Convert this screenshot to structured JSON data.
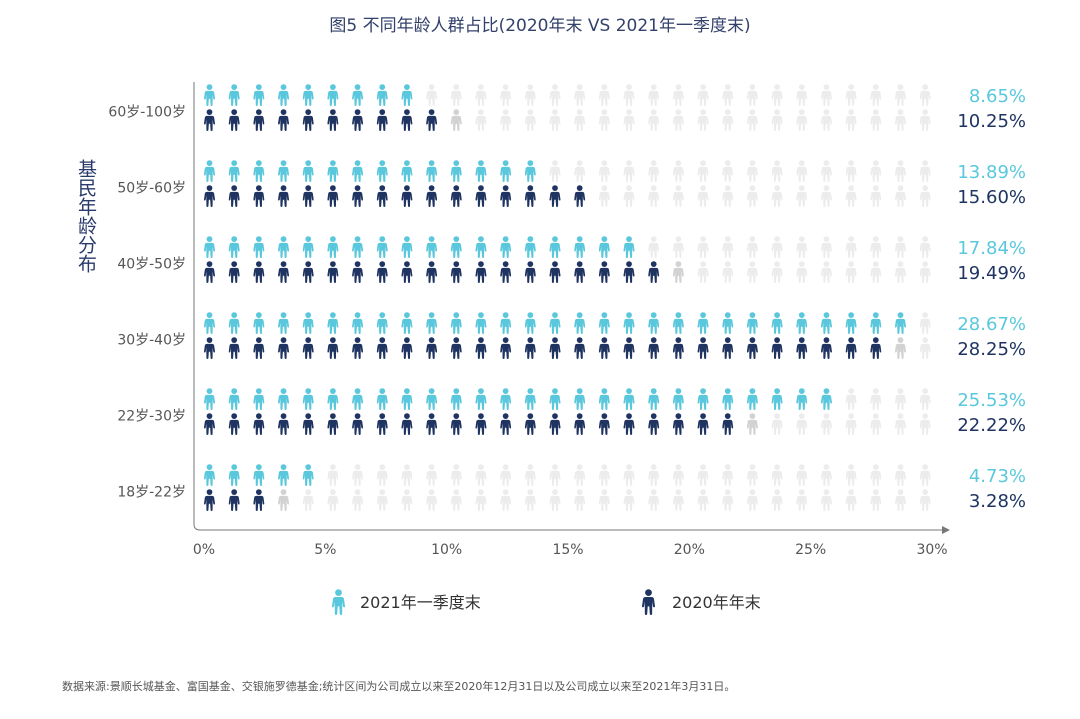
{
  "chart_data": {
    "type": "bar",
    "title": "图5   不同年龄人群占比(2020年末 VS 2021年一季度末)",
    "ylabel": "基民年龄分布",
    "xlabel": "",
    "categories": [
      "60岁-100岁",
      "50岁-60岁",
      "40岁-50岁",
      "30岁-40岁",
      "22岁-30岁",
      "18岁-22岁"
    ],
    "series": [
      {
        "name": "2021年一季度末",
        "values": [
          8.65,
          13.89,
          17.84,
          28.67,
          25.53,
          4.73
        ],
        "labels": [
          "8.65%",
          "13.89%",
          "17.84%",
          "28.67%",
          "25.53%",
          "4.73%"
        ],
        "color": "#59c8dc"
      },
      {
        "name": "2020年年末",
        "values": [
          10.25,
          15.6,
          19.49,
          28.25,
          22.22,
          3.28
        ],
        "labels": [
          "10.25%",
          "15.60%",
          "19.49%",
          "28.25%",
          "22.22%",
          "3.28%"
        ],
        "color": "#1f3461"
      }
    ],
    "xlim": [
      0,
      30
    ],
    "xticks": [
      "0%",
      "5%",
      "10%",
      "15%",
      "20%",
      "25%",
      "30%"
    ],
    "icons_per_row": 30,
    "empty_color": "#ececec",
    "legend_position": "bottom"
  },
  "source_note": "数据来源:景顺长城基金、富国基金、交银施罗德基金;统计区间为公司成立以来至2020年12月31日以及公司成立以来至2021年3月31日。"
}
